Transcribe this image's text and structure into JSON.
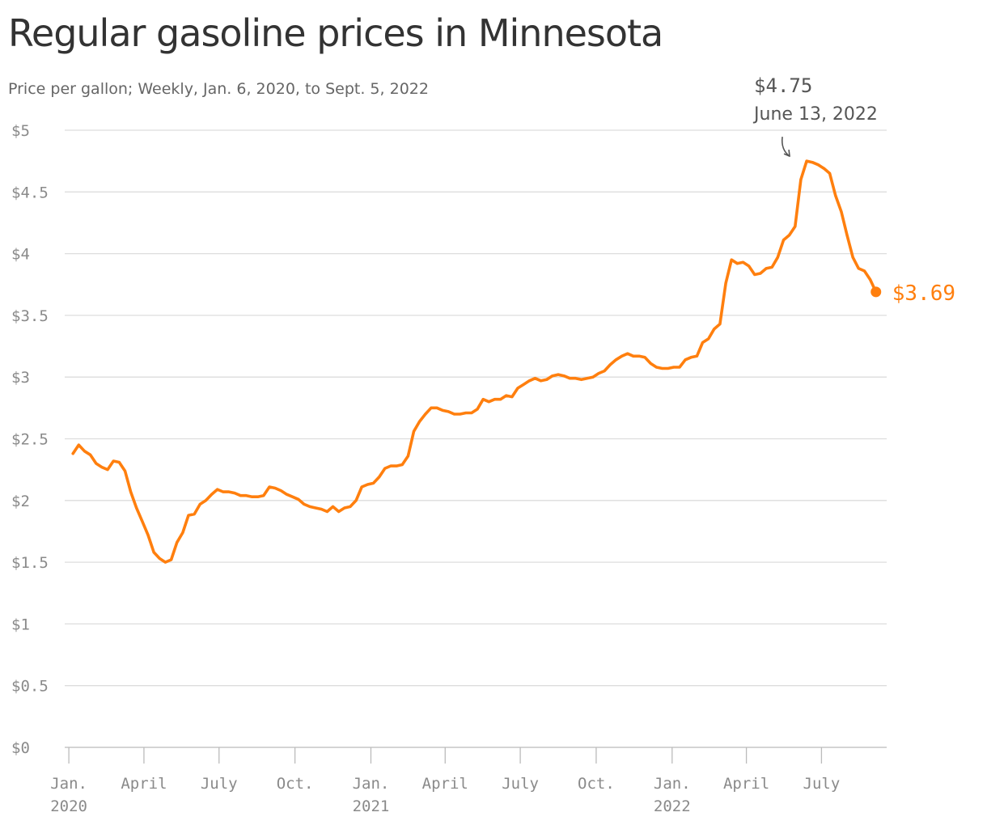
{
  "title": "Regular gasoline prices in Minnesota",
  "subtitle": "Price per gallon; Weekly, Jan. 6, 2020, to Sept. 5, 2022",
  "colors": {
    "line": "#ff7f0e",
    "grid": "#dddddd",
    "axis_text": "#8a8a8a",
    "title": "#333333",
    "annotation": "#555555"
  },
  "chart_data": {
    "type": "line",
    "title": "Regular gasoline prices in Minnesota",
    "subtitle": "Price per gallon; Weekly, Jan. 6, 2020, to Sept. 5, 2022",
    "xlabel": "",
    "ylabel": "",
    "ylim": [
      0,
      5
    ],
    "xlim": [
      "2019-12-27",
      "2022-09-18"
    ],
    "grid": "horizontal",
    "legend": "none",
    "y_ticks": [
      {
        "value": 0,
        "label": "$0"
      },
      {
        "value": 0.5,
        "label": "$0.5"
      },
      {
        "value": 1,
        "label": "$1"
      },
      {
        "value": 1.5,
        "label": "$1.5"
      },
      {
        "value": 2,
        "label": "$2"
      },
      {
        "value": 2.5,
        "label": "$2.5"
      },
      {
        "value": 3,
        "label": "$3"
      },
      {
        "value": 3.5,
        "label": "$3.5"
      },
      {
        "value": 4,
        "label": "$4"
      },
      {
        "value": 4.5,
        "label": "$4.5"
      },
      {
        "value": 5,
        "label": "$5"
      }
    ],
    "x_ticks": [
      {
        "date": "2020-01-01",
        "label": "Jan.",
        "year": "2020"
      },
      {
        "date": "2020-04-01",
        "label": "April",
        "year": ""
      },
      {
        "date": "2020-07-01",
        "label": "July",
        "year": ""
      },
      {
        "date": "2020-10-01",
        "label": "Oct.",
        "year": ""
      },
      {
        "date": "2021-01-01",
        "label": "Jan.",
        "year": "2021"
      },
      {
        "date": "2021-04-01",
        "label": "April",
        "year": ""
      },
      {
        "date": "2021-07-01",
        "label": "July",
        "year": ""
      },
      {
        "date": "2021-10-01",
        "label": "Oct.",
        "year": ""
      },
      {
        "date": "2022-01-01",
        "label": "Jan.",
        "year": "2022"
      },
      {
        "date": "2022-04-01",
        "label": "April",
        "year": ""
      },
      {
        "date": "2022-07-01",
        "label": "July",
        "year": ""
      }
    ],
    "series": [
      {
        "points": [
          [
            "2020-01-06",
            2.38
          ],
          [
            "2020-01-13",
            2.45
          ],
          [
            "2020-01-20",
            2.4
          ],
          [
            "2020-01-27",
            2.37
          ],
          [
            "2020-02-03",
            2.3
          ],
          [
            "2020-02-10",
            2.27
          ],
          [
            "2020-02-17",
            2.25
          ],
          [
            "2020-02-24",
            2.32
          ],
          [
            "2020-03-02",
            2.31
          ],
          [
            "2020-03-09",
            2.24
          ],
          [
            "2020-03-16",
            2.07
          ],
          [
            "2020-03-23",
            1.94
          ],
          [
            "2020-03-30",
            1.83
          ],
          [
            "2020-04-06",
            1.72
          ],
          [
            "2020-04-13",
            1.58
          ],
          [
            "2020-04-20",
            1.53
          ],
          [
            "2020-04-27",
            1.5
          ],
          [
            "2020-05-04",
            1.52
          ],
          [
            "2020-05-11",
            1.66
          ],
          [
            "2020-05-18",
            1.74
          ],
          [
            "2020-05-25",
            1.88
          ],
          [
            "2020-06-01",
            1.89
          ],
          [
            "2020-06-08",
            1.97
          ],
          [
            "2020-06-15",
            2.0
          ],
          [
            "2020-06-22",
            2.05
          ],
          [
            "2020-06-29",
            2.09
          ],
          [
            "2020-07-06",
            2.07
          ],
          [
            "2020-07-13",
            2.07
          ],
          [
            "2020-07-20",
            2.06
          ],
          [
            "2020-07-27",
            2.04
          ],
          [
            "2020-08-03",
            2.04
          ],
          [
            "2020-08-10",
            2.03
          ],
          [
            "2020-08-17",
            2.03
          ],
          [
            "2020-08-24",
            2.04
          ],
          [
            "2020-08-31",
            2.11
          ],
          [
            "2020-09-07",
            2.1
          ],
          [
            "2020-09-14",
            2.08
          ],
          [
            "2020-09-21",
            2.05
          ],
          [
            "2020-09-28",
            2.03
          ],
          [
            "2020-10-05",
            2.01
          ],
          [
            "2020-10-12",
            1.97
          ],
          [
            "2020-10-19",
            1.95
          ],
          [
            "2020-10-26",
            1.94
          ],
          [
            "2020-11-02",
            1.93
          ],
          [
            "2020-11-09",
            1.91
          ],
          [
            "2020-11-16",
            1.95
          ],
          [
            "2020-11-23",
            1.91
          ],
          [
            "2020-11-30",
            1.94
          ],
          [
            "2020-12-07",
            1.95
          ],
          [
            "2020-12-14",
            2.0
          ],
          [
            "2020-12-21",
            2.11
          ],
          [
            "2020-12-28",
            2.13
          ],
          [
            "2021-01-04",
            2.14
          ],
          [
            "2021-01-11",
            2.19
          ],
          [
            "2021-01-18",
            2.26
          ],
          [
            "2021-01-25",
            2.28
          ],
          [
            "2021-02-01",
            2.28
          ],
          [
            "2021-02-08",
            2.29
          ],
          [
            "2021-02-15",
            2.36
          ],
          [
            "2021-02-22",
            2.56
          ],
          [
            "2021-03-01",
            2.64
          ],
          [
            "2021-03-08",
            2.7
          ],
          [
            "2021-03-15",
            2.75
          ],
          [
            "2021-03-22",
            2.75
          ],
          [
            "2021-03-29",
            2.73
          ],
          [
            "2021-04-05",
            2.72
          ],
          [
            "2021-04-12",
            2.7
          ],
          [
            "2021-04-19",
            2.7
          ],
          [
            "2021-04-26",
            2.71
          ],
          [
            "2021-05-03",
            2.71
          ],
          [
            "2021-05-10",
            2.74
          ],
          [
            "2021-05-17",
            2.82
          ],
          [
            "2021-05-24",
            2.8
          ],
          [
            "2021-05-31",
            2.82
          ],
          [
            "2021-06-07",
            2.82
          ],
          [
            "2021-06-14",
            2.85
          ],
          [
            "2021-06-21",
            2.84
          ],
          [
            "2021-06-28",
            2.91
          ],
          [
            "2021-07-05",
            2.94
          ],
          [
            "2021-07-12",
            2.97
          ],
          [
            "2021-07-19",
            2.99
          ],
          [
            "2021-07-26",
            2.97
          ],
          [
            "2021-08-02",
            2.98
          ],
          [
            "2021-08-09",
            3.01
          ],
          [
            "2021-08-16",
            3.02
          ],
          [
            "2021-08-23",
            3.01
          ],
          [
            "2021-08-30",
            2.99
          ],
          [
            "2021-09-06",
            2.99
          ],
          [
            "2021-09-13",
            2.98
          ],
          [
            "2021-09-20",
            2.99
          ],
          [
            "2021-09-27",
            3.0
          ],
          [
            "2021-10-04",
            3.03
          ],
          [
            "2021-10-11",
            3.05
          ],
          [
            "2021-10-18",
            3.1
          ],
          [
            "2021-10-25",
            3.14
          ],
          [
            "2021-11-01",
            3.17
          ],
          [
            "2021-11-08",
            3.19
          ],
          [
            "2021-11-15",
            3.17
          ],
          [
            "2021-11-22",
            3.17
          ],
          [
            "2021-11-29",
            3.16
          ],
          [
            "2021-12-06",
            3.11
          ],
          [
            "2021-12-13",
            3.08
          ],
          [
            "2021-12-20",
            3.07
          ],
          [
            "2021-12-27",
            3.07
          ],
          [
            "2022-01-03",
            3.08
          ],
          [
            "2022-01-10",
            3.08
          ],
          [
            "2022-01-17",
            3.14
          ],
          [
            "2022-01-24",
            3.16
          ],
          [
            "2022-01-31",
            3.17
          ],
          [
            "2022-02-07",
            3.28
          ],
          [
            "2022-02-14",
            3.31
          ],
          [
            "2022-02-21",
            3.39
          ],
          [
            "2022-02-28",
            3.43
          ],
          [
            "2022-03-07",
            3.76
          ],
          [
            "2022-03-14",
            3.95
          ],
          [
            "2022-03-21",
            3.92
          ],
          [
            "2022-03-28",
            3.93
          ],
          [
            "2022-04-04",
            3.9
          ],
          [
            "2022-04-11",
            3.83
          ],
          [
            "2022-04-18",
            3.84
          ],
          [
            "2022-04-25",
            3.88
          ],
          [
            "2022-05-02",
            3.89
          ],
          [
            "2022-05-09",
            3.97
          ],
          [
            "2022-05-16",
            4.11
          ],
          [
            "2022-05-23",
            4.15
          ],
          [
            "2022-05-30",
            4.22
          ],
          [
            "2022-06-06",
            4.6
          ],
          [
            "2022-06-13",
            4.75
          ],
          [
            "2022-06-20",
            4.74
          ],
          [
            "2022-06-27",
            4.72
          ],
          [
            "2022-07-04",
            4.69
          ],
          [
            "2022-07-11",
            4.65
          ],
          [
            "2022-07-18",
            4.47
          ],
          [
            "2022-07-25",
            4.34
          ],
          [
            "2022-08-01",
            4.15
          ],
          [
            "2022-08-08",
            3.97
          ],
          [
            "2022-08-15",
            3.88
          ],
          [
            "2022-08-22",
            3.86
          ],
          [
            "2022-08-29",
            3.79
          ],
          [
            "2022-09-05",
            3.69
          ]
        ]
      }
    ],
    "annotations": {
      "peak": {
        "date": "2022-06-13",
        "value": 4.75,
        "value_label": "$4.75",
        "date_label": "June 13, 2022"
      },
      "last": {
        "date": "2022-09-05",
        "value": 3.69,
        "label": "$3.69"
      }
    }
  }
}
